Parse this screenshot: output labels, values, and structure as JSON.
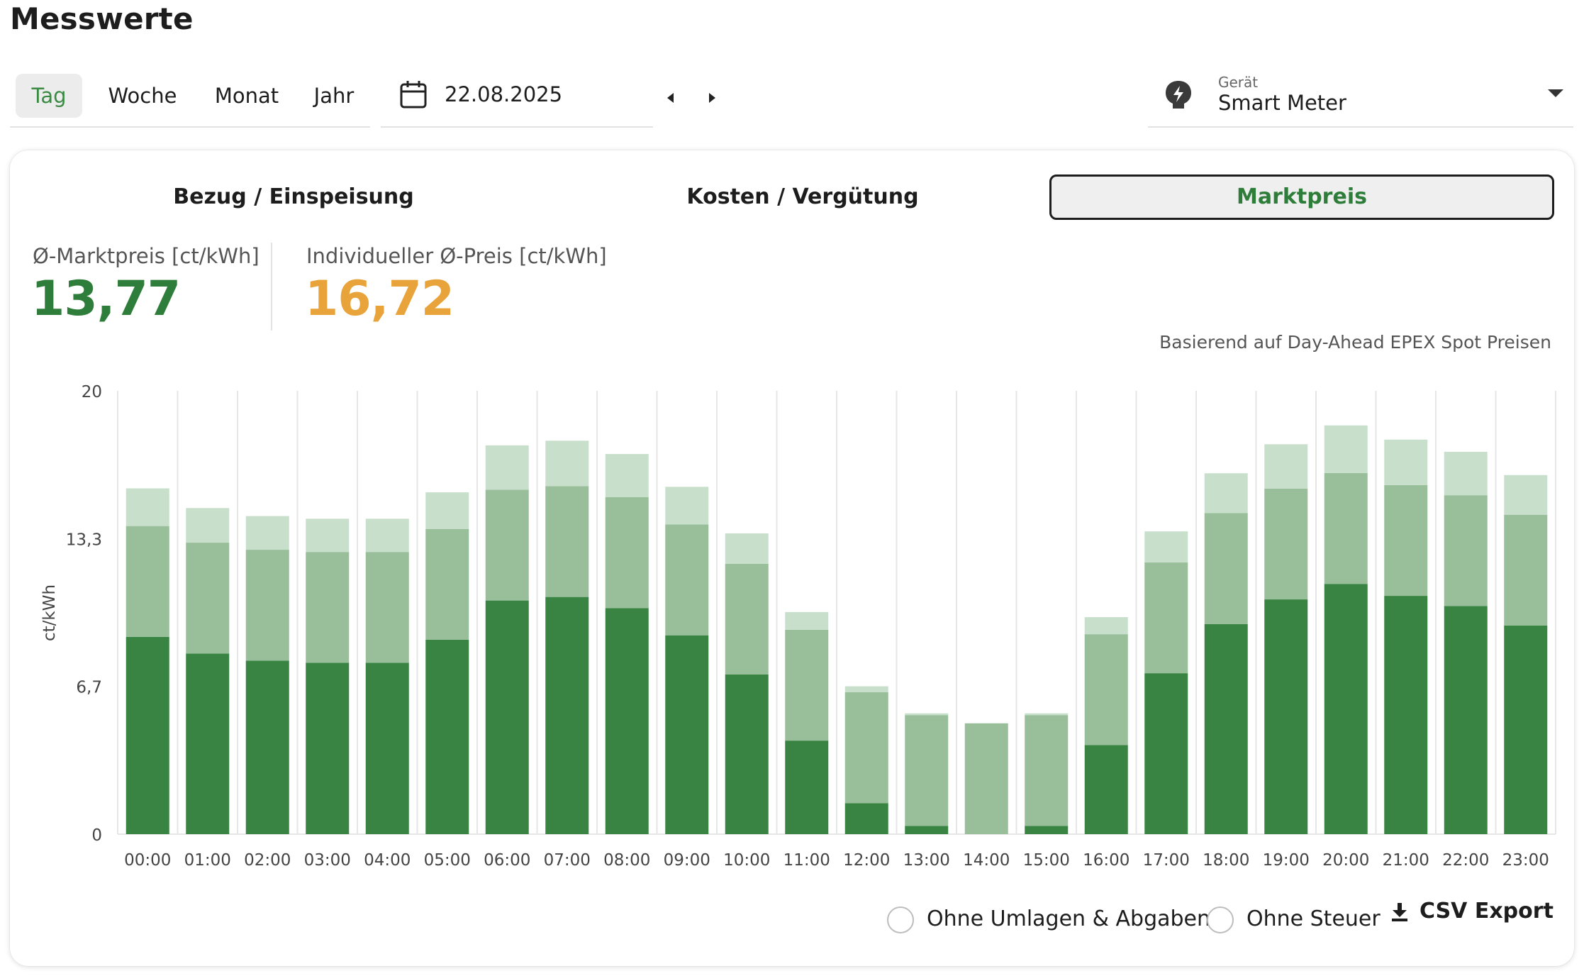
{
  "page": {
    "title": "Messwerte"
  },
  "period_tabs": [
    {
      "label": "Tag",
      "active": true
    },
    {
      "label": "Woche",
      "active": false
    },
    {
      "label": "Monat",
      "active": false
    },
    {
      "label": "Jahr",
      "active": false
    }
  ],
  "date_picker": {
    "value": "22.08.2025",
    "icon": "calendar-icon"
  },
  "device_select": {
    "label": "Gerät",
    "value": "Smart Meter",
    "icon": "smart-meter-icon"
  },
  "view_tabs": [
    {
      "label": "Bezug / Einspeisung",
      "active": false
    },
    {
      "label": "Kosten / Vergütung",
      "active": false
    },
    {
      "label": "Marktpreis",
      "active": true
    }
  ],
  "kpis": {
    "market_avg": {
      "label": "Ø-Marktpreis [ct/kWh]",
      "value": "13,77",
      "color": "#2f7d3a"
    },
    "individual_avg": {
      "label": "Individueller Ø-Preis [ct/kWh]",
      "value": "16,72",
      "color": "#e8a43a"
    }
  },
  "source_note": "Basierend auf Day-Ahead EPEX Spot Preisen",
  "options": {
    "without_levies": "Ohne Umlagen & Abgaben",
    "without_tax": "Ohne Steuer",
    "csv_export": "CSV Export"
  },
  "colors": {
    "accent": "#3a8a44",
    "series_dark": "#3a8443",
    "series_mid": "#98bf9a",
    "series_light": "#c8e0cb",
    "grid": "#e6e6e6"
  },
  "chart_data": {
    "type": "bar",
    "stacked": true,
    "ylabel": "ct/kWh",
    "ylim": [
      0,
      20
    ],
    "yticks": [
      "0",
      "6,7",
      "13,3",
      "20"
    ],
    "ytick_values": [
      0,
      6.67,
      13.33,
      20
    ],
    "categories": [
      "00:00",
      "01:00",
      "02:00",
      "03:00",
      "04:00",
      "05:00",
      "06:00",
      "07:00",
      "08:00",
      "09:00",
      "10:00",
      "11:00",
      "12:00",
      "13:00",
      "14:00",
      "15:00",
      "16:00",
      "17:00",
      "18:00",
      "19:00",
      "20:00",
      "21:00",
      "22:00",
      "23:00"
    ],
    "series": [
      {
        "values": [
          8.9,
          8.15,
          7.83,
          7.73,
          7.73,
          8.77,
          10.54,
          10.7,
          10.2,
          8.97,
          7.2,
          4.22,
          1.4,
          0.37,
          0,
          0.37,
          4.02,
          7.26,
          9.48,
          10.59,
          11.29,
          10.75,
          10.29,
          9.41
        ]
      },
      {
        "values": [
          5.0,
          5.0,
          5.0,
          5.0,
          5.0,
          5.0,
          5.0,
          5.0,
          5.0,
          5.0,
          5.0,
          5.0,
          5.0,
          5.0,
          5.0,
          5.0,
          5.0,
          5.0,
          5.0,
          5.0,
          5.0,
          5.0,
          5.0,
          5.0
        ]
      },
      {
        "values": [
          1.7,
          1.56,
          1.52,
          1.5,
          1.5,
          1.65,
          2.0,
          2.05,
          1.95,
          1.7,
          1.37,
          0.8,
          0.27,
          0.08,
          0,
          0.08,
          0.77,
          1.4,
          1.8,
          2.0,
          2.15,
          2.05,
          1.96,
          1.79
        ]
      }
    ]
  }
}
